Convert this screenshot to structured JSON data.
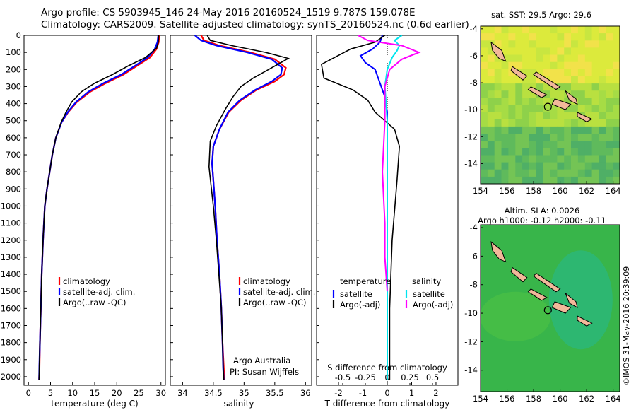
{
  "header": {
    "line1": "Argo profile: CS 5903945_146 24-May-2016 20160524_1519 9.787S 159.078E",
    "line2": "Climatology: CARS2009. Satellite-adjusted climatology: synTS_20160524.nc (0.6d earlier)"
  },
  "footer_vertical": "©IMOS 31-May-2016 20:39:09",
  "colors": {
    "climatology": "#ff0000",
    "satellite": "#0000ff",
    "argo": "#000000",
    "sal_satellite": "#00e5ee",
    "sal_argo": "#ff00ff"
  },
  "chart_data": [
    {
      "type": "line",
      "xlabel": "temperature (deg C)",
      "ylim": [
        2050,
        0
      ],
      "xlim": [
        -1,
        31
      ],
      "xticks": [
        "0",
        "5",
        "10",
        "15",
        "20",
        "25",
        "30"
      ],
      "yticks": [
        "0",
        "100",
        "200",
        "300",
        "400",
        "500",
        "600",
        "700",
        "800",
        "900",
        "1000",
        "1100",
        "1200",
        "1300",
        "1400",
        "1500",
        "1600",
        "1700",
        "1800",
        "1900",
        "2000"
      ],
      "legend": [
        "climatology",
        "satellite-adj. clim.",
        "Argo(..raw -QC)"
      ],
      "series": [
        {
          "name": "climatology",
          "x": [
            29.6,
            29.5,
            29.0,
            27.5,
            24.5,
            21.5,
            17.5,
            14.0,
            11.0,
            9.0,
            7.5,
            6.2,
            5.4,
            4.8,
            4.2,
            3.7,
            3.3,
            3.0,
            2.8,
            2.6,
            2.5,
            2.4
          ],
          "y": [
            0,
            40,
            80,
            130,
            180,
            230,
            280,
            330,
            390,
            450,
            510,
            600,
            700,
            800,
            900,
            1000,
            1200,
            1400,
            1600,
            1800,
            1950,
            2020
          ]
        },
        {
          "name": "satellite-adj. clim.",
          "x": [
            29.4,
            29.2,
            28.6,
            27.0,
            24.0,
            21.0,
            17.0,
            13.6,
            10.8,
            8.9,
            7.5,
            6.2,
            5.4,
            4.8,
            4.2,
            3.7,
            3.3,
            3.0,
            2.8,
            2.6,
            2.45,
            2.4
          ],
          "y": [
            0,
            40,
            80,
            130,
            180,
            230,
            280,
            330,
            390,
            450,
            510,
            600,
            700,
            800,
            900,
            1000,
            1200,
            1400,
            1600,
            1800,
            1950,
            2020
          ]
        },
        {
          "name": "Argo(..raw -QC)",
          "x": [
            29.5,
            29.4,
            29.0,
            26.5,
            22.5,
            19.0,
            15.0,
            12.0,
            9.8,
            8.5,
            7.4,
            6.2,
            5.4,
            4.8,
            4.2,
            3.7,
            3.3,
            3.0,
            2.8,
            2.6,
            2.45,
            2.4
          ],
          "y": [
            0,
            40,
            75,
            130,
            180,
            230,
            280,
            330,
            390,
            450,
            510,
            600,
            700,
            800,
            900,
            1000,
            1200,
            1400,
            1600,
            1800,
            1950,
            2020
          ]
        }
      ]
    },
    {
      "type": "line",
      "xlabel": "salinity",
      "ylim": [
        2050,
        0
      ],
      "xlim": [
        33.8,
        36.1
      ],
      "xticks": [
        "34",
        "34.5",
        "35",
        "35.5",
        "36"
      ],
      "legend": [
        "climatology",
        "satellite-adj. clim.",
        "Argo(..raw -QC)"
      ],
      "annotation": [
        "Argo Australia",
        "PI: Susan Wijffels"
      ],
      "series": [
        {
          "name": "climatology",
          "x": [
            34.3,
            34.35,
            34.6,
            35.1,
            35.5,
            35.68,
            35.65,
            35.5,
            35.2,
            34.95,
            34.75,
            34.6,
            34.5,
            34.48,
            34.5,
            34.53,
            34.56,
            34.6,
            34.63,
            34.65,
            34.67,
            34.68
          ],
          "y": [
            0,
            30,
            60,
            100,
            140,
            190,
            230,
            270,
            320,
            380,
            450,
            550,
            650,
            750,
            850,
            1000,
            1200,
            1400,
            1600,
            1800,
            1950,
            2020
          ]
        },
        {
          "name": "satellite-adj. clim.",
          "x": [
            34.2,
            34.3,
            34.55,
            35.05,
            35.45,
            35.62,
            35.6,
            35.45,
            35.18,
            34.93,
            34.74,
            34.6,
            34.5,
            34.48,
            34.5,
            34.53,
            34.56,
            34.6,
            34.63,
            34.65,
            34.66,
            34.67
          ],
          "y": [
            0,
            30,
            60,
            100,
            140,
            190,
            230,
            270,
            320,
            380,
            450,
            550,
            650,
            750,
            850,
            1000,
            1200,
            1400,
            1600,
            1800,
            1950,
            2020
          ]
        },
        {
          "name": "Argo(..raw -QC)",
          "x": [
            34.4,
            34.45,
            34.8,
            35.35,
            35.72,
            35.55,
            35.35,
            35.15,
            34.95,
            34.82,
            34.7,
            34.55,
            34.45,
            34.43,
            34.46,
            34.5,
            34.55,
            34.59,
            34.63,
            34.65,
            34.66,
            34.67
          ],
          "y": [
            0,
            30,
            60,
            100,
            135,
            170,
            210,
            250,
            300,
            360,
            430,
            530,
            620,
            770,
            870,
            1000,
            1200,
            1400,
            1600,
            1800,
            1950,
            2020
          ]
        }
      ]
    },
    {
      "type": "line",
      "xlabel": "T difference from climatology",
      "top_axis_label": "S difference from climatology",
      "ylim": [
        2050,
        0
      ],
      "xlim": [
        -2.9,
        2.9
      ],
      "xticks": [
        "-2",
        "-1",
        "0",
        "1",
        "2"
      ],
      "top_xticks": [
        "-0.5",
        "-0.25",
        "0",
        "0.25",
        "0.5"
      ],
      "legend_left_title": "temperature",
      "legend_right_title": "salinity",
      "legend": [
        "satellite",
        "Argo(-adj)",
        "satellite",
        "Argo(-adj)"
      ],
      "series": [
        {
          "name": "temperature satellite",
          "x": [
            -0.2,
            -0.3,
            -0.6,
            -1.1,
            -0.9,
            -0.5,
            -0.3,
            -0.1,
            0.0,
            0.0,
            0.0,
            0.0,
            0.0
          ],
          "y": [
            0,
            40,
            80,
            120,
            160,
            200,
            280,
            360,
            450,
            600,
            1000,
            1500,
            2020
          ]
        },
        {
          "name": "temperature Argo(-adj)",
          "x": [
            -0.1,
            -0.5,
            -1.5,
            -2.7,
            -2.6,
            -1.4,
            -0.8,
            -0.5,
            0.3,
            0.5,
            0.4,
            0.2,
            0.1,
            0.1
          ],
          "y": [
            0,
            40,
            80,
            170,
            250,
            320,
            380,
            450,
            550,
            650,
            850,
            1200,
            1600,
            2020
          ]
        },
        {
          "name": "salinity satellite",
          "x": [
            0.6,
            0.3,
            0.5,
            0.4,
            0.2,
            0.0,
            -0.1,
            0.0,
            0.0,
            0.0,
            0.0
          ],
          "y": [
            0,
            30,
            60,
            90,
            130,
            200,
            300,
            500,
            1000,
            1500,
            2020
          ]
        },
        {
          "name": "salinity Argo(-adj)",
          "x": [
            -1.2,
            -0.8,
            0.6,
            1.3,
            0.6,
            0.1,
            -0.1,
            -0.1,
            -0.2,
            -0.1,
            -0.1,
            0.0
          ],
          "y": [
            0,
            30,
            60,
            100,
            140,
            200,
            300,
            500,
            800,
            1100,
            1300,
            1500
          ]
        }
      ]
    },
    {
      "type": "heatmap",
      "title": "sat. SST: 29.5  Argo: 29.6",
      "xticks": [
        "154",
        "156",
        "158",
        "160",
        "162",
        "164"
      ],
      "yticks": [
        "-4",
        "-6",
        "-8",
        "-10",
        "-12",
        "-14"
      ],
      "xlim": [
        154,
        164.5
      ],
      "ylim": [
        -15.5,
        -3.8
      ],
      "argo_position": [
        159.078,
        -9.787
      ]
    },
    {
      "type": "heatmap",
      "title_line1": "Altim. SLA: 0.0026",
      "title_line2": "Argo h1000: -0.12  h2000: -0.11",
      "xticks": [
        "154",
        "156",
        "158",
        "160",
        "162",
        "164"
      ],
      "yticks": [
        "-4",
        "-6",
        "-8",
        "-10",
        "-12",
        "-14"
      ],
      "xlim": [
        154,
        164.5
      ],
      "ylim": [
        -15.5,
        -3.8
      ],
      "argo_position": [
        159.078,
        -9.787
      ]
    }
  ]
}
